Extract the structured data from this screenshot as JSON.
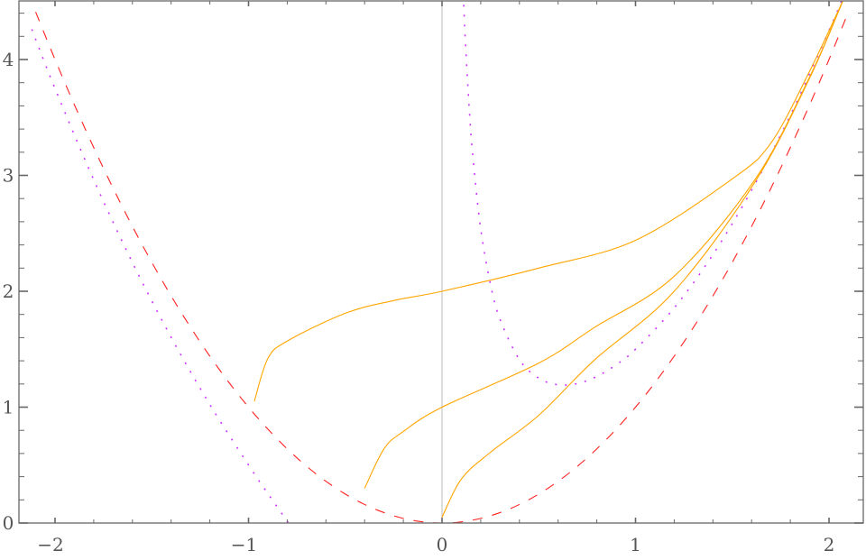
{
  "chart_data": {
    "type": "line",
    "title": "",
    "xlabel": "",
    "ylabel": "",
    "xlim": [
      -2.28,
      2.19
    ],
    "ylim": [
      0,
      4.5
    ],
    "grid": false,
    "frame": true,
    "x_ticks": [
      -2,
      -1,
      0,
      1,
      2
    ],
    "x_tick_labels": [
      "−2",
      "−1",
      "0",
      "1",
      "2"
    ],
    "y_ticks": [
      0,
      1,
      2,
      3,
      4
    ],
    "y_tick_labels": [
      "0",
      "1",
      "2",
      "3",
      "4"
    ],
    "colors": {
      "frame": "#666666",
      "zero_axis": "#bbbbbb",
      "parabola": "#ff2020",
      "purple": "#cc33ff",
      "orange": "#ffa500"
    },
    "series": [
      {
        "style": "dashed",
        "color": "#ff2020",
        "segments": [
          [
            [
              -2.1,
              4.41
            ],
            [
              -2.0,
              4.0
            ],
            [
              -1.9,
              3.61
            ],
            [
              -1.8,
              3.24
            ],
            [
              -1.7,
              2.89
            ],
            [
              -1.6,
              2.56
            ],
            [
              -1.5,
              2.25
            ],
            [
              -1.4,
              1.96
            ],
            [
              -1.3,
              1.69
            ],
            [
              -1.2,
              1.44
            ],
            [
              -1.1,
              1.21
            ],
            [
              -1.0,
              1.0
            ],
            [
              -0.9,
              0.81
            ],
            [
              -0.8,
              0.64
            ],
            [
              -0.7,
              0.49
            ],
            [
              -0.6,
              0.36
            ],
            [
              -0.5,
              0.25
            ],
            [
              -0.4,
              0.16
            ],
            [
              -0.3,
              0.09
            ],
            [
              -0.2,
              0.04
            ],
            [
              -0.1,
              0.01
            ],
            [
              0,
              0
            ],
            [
              0.1,
              0.01
            ],
            [
              0.2,
              0.04
            ],
            [
              0.3,
              0.09
            ],
            [
              0.4,
              0.16
            ],
            [
              0.5,
              0.25
            ],
            [
              0.6,
              0.36
            ],
            [
              0.7,
              0.49
            ],
            [
              0.8,
              0.64
            ],
            [
              0.9,
              0.81
            ],
            [
              1.0,
              1.0
            ],
            [
              1.1,
              1.21
            ],
            [
              1.2,
              1.44
            ],
            [
              1.3,
              1.69
            ],
            [
              1.4,
              1.96
            ],
            [
              1.5,
              2.25
            ],
            [
              1.6,
              2.56
            ],
            [
              1.7,
              2.89
            ],
            [
              1.8,
              3.24
            ],
            [
              1.9,
              3.61
            ],
            [
              2.0,
              4.0
            ],
            [
              2.1,
              4.41
            ]
          ]
        ]
      },
      {
        "style": "dotted",
        "color": "#cc33ff",
        "segments": [
          [
            [
              -2.12,
              4.26
            ],
            [
              -2.0,
              3.75
            ],
            [
              -1.8,
              2.962
            ],
            [
              -1.6,
              2.248
            ],
            [
              -1.4,
              1.603
            ],
            [
              -1.2,
              1.023
            ],
            [
              -1.0,
              0.5
            ],
            [
              -0.9,
              0.254
            ],
            [
              -0.8,
              0.015
            ],
            [
              -0.795,
              0.0
            ]
          ],
          [
            [
              0.11,
              4.557
            ],
            [
              0.12,
              4.181
            ],
            [
              0.14,
              3.591
            ],
            [
              0.16,
              3.151
            ],
            [
              0.2,
              2.54
            ],
            [
              0.25,
              2.063
            ],
            [
              0.3,
              1.757
            ],
            [
              0.4,
              1.41
            ],
            [
              0.5,
              1.25
            ],
            [
              0.6,
              1.193
            ],
            [
              0.7,
              1.204
            ],
            [
              0.8,
              1.265
            ],
            [
              0.9,
              1.366
            ],
            [
              1.0,
              1.5
            ],
            [
              1.2,
              1.857
            ],
            [
              1.4,
              2.317
            ],
            [
              1.6,
              2.873
            ],
            [
              1.8,
              3.518
            ],
            [
              2.0,
              4.25
            ],
            [
              2.08,
              4.567
            ]
          ]
        ]
      },
      {
        "style": "solid",
        "color": "#ffa500",
        "segments": [
          [
            [
              -0.97,
              1.05
            ],
            [
              -0.9,
              1.42
            ],
            [
              -0.8,
              1.57
            ],
            [
              -0.5,
              1.81
            ],
            [
              -0.25,
              1.92
            ],
            [
              0,
              2.0
            ],
            [
              0.5,
              2.2
            ],
            [
              1.0,
              2.44
            ],
            [
              1.5,
              2.97
            ],
            [
              1.7,
              3.28
            ],
            [
              1.9,
              3.9
            ],
            [
              2.07,
              4.5
            ]
          ],
          [
            [
              -0.4,
              0.3
            ],
            [
              -0.3,
              0.64
            ],
            [
              -0.2,
              0.79
            ],
            [
              0,
              1.0
            ],
            [
              0.5,
              1.38
            ],
            [
              0.79,
              1.69
            ],
            [
              1.2,
              2.13
            ],
            [
              1.62,
              2.97
            ],
            [
              1.9,
              3.85
            ],
            [
              2.07,
              4.5
            ]
          ],
          [
            [
              0,
              0.05
            ],
            [
              0.1,
              0.38
            ],
            [
              0.25,
              0.61
            ],
            [
              0.5,
              0.93
            ],
            [
              0.79,
              1.41
            ],
            [
              1.2,
              2.0
            ],
            [
              1.62,
              2.95
            ],
            [
              1.9,
              3.84
            ],
            [
              2.07,
              4.5
            ]
          ]
        ]
      }
    ]
  }
}
